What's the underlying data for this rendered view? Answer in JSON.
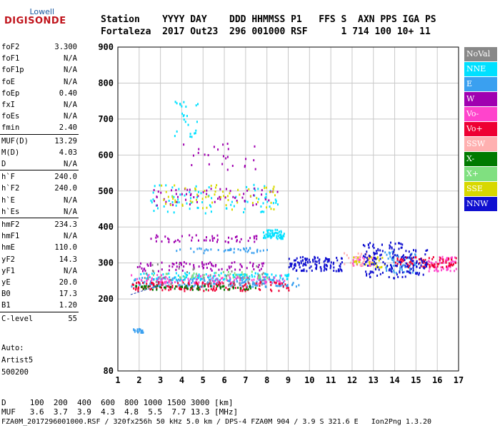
{
  "logo": {
    "top": "Lowell",
    "bottom": "DIGISONDE"
  },
  "header": {
    "line1": "Station    YYYY DAY    DDD HHMMSS P1   FFS S  AXN PPS IGA PS",
    "line2": "Fortaleza  2017 Out23  296 001000 RSF      1 714 100 10+ 11"
  },
  "params": [
    {
      "k": "foF2",
      "v": "3.300"
    },
    {
      "k": "foF1",
      "v": "N/A"
    },
    {
      "k": "foF1p",
      "v": "N/A"
    },
    {
      "k": "foE",
      "v": "N/A"
    },
    {
      "k": "foEp",
      "v": "0.40"
    },
    {
      "k": "fxI",
      "v": "N/A"
    },
    {
      "k": "foEs",
      "v": "N/A"
    },
    {
      "k": "fmin",
      "v": "2.40"
    },
    {
      "k": "MUF(D)",
      "v": "13.29"
    },
    {
      "k": "M(D)",
      "v": "4.03"
    },
    {
      "k": "D",
      "v": "N/A"
    },
    {
      "k": "h`F",
      "v": "240.0"
    },
    {
      "k": "h`F2",
      "v": "240.0"
    },
    {
      "k": "h`E",
      "v": "N/A"
    },
    {
      "k": "h`Es",
      "v": "N/A"
    },
    {
      "k": "hmF2",
      "v": "234.3"
    },
    {
      "k": "hmF1",
      "v": "N/A"
    },
    {
      "k": "hmE",
      "v": "110.0"
    },
    {
      "k": "yF2",
      "v": "14.3"
    },
    {
      "k": "yF1",
      "v": "N/A"
    },
    {
      "k": "yE",
      "v": "20.0"
    },
    {
      "k": "B0",
      "v": "17.3"
    },
    {
      "k": "B1",
      "v": "1.20"
    },
    {
      "k": "C-level",
      "v": "55"
    }
  ],
  "info": {
    "auto": "Auto:",
    "artist": "Artist5",
    "code": "500200"
  },
  "legend": [
    {
      "label": "NoVal",
      "bg": "#888888",
      "fg": "#ffffff"
    },
    {
      "label": "NNE",
      "bg": "#00e0ff",
      "fg": "#ffffff"
    },
    {
      "label": "E",
      "bg": "#3aa0f0",
      "fg": "#ffffff"
    },
    {
      "label": "W",
      "bg": "#a000b0",
      "fg": "#ffffff"
    },
    {
      "label": "Vo-",
      "bg": "#ff44cc",
      "fg": "#ffffff"
    },
    {
      "label": "Vo+",
      "bg": "#ee0033",
      "fg": "#ffffff"
    },
    {
      "label": "SSW",
      "bg": "#ffb0b0",
      "fg": "#ffffff"
    },
    {
      "label": "X-",
      "bg": "#007a00",
      "fg": "#ffffff"
    },
    {
      "label": "X+",
      "bg": "#80e080",
      "fg": "#ffffff"
    },
    {
      "label": "SSE",
      "bg": "#d8d800",
      "fg": "#ffffff"
    },
    {
      "label": "NNW",
      "bg": "#1010d0",
      "fg": "#ffffff"
    }
  ],
  "footer": {
    "row1": "D     100  200  400  600  800 1000 1500 3000 [km]",
    "row2": "MUF   3.6  3.7  3.9  4.3  4.8  5.5  7.7 13.3 [MHz]",
    "row3": "FZA0M_2017296001000.RSF / 320fx256h 50 kHz 5.0 km / DPS-4 FZA0M 904 / 3.9 S 321.6 E   Ion2Png 1.3.20"
  },
  "chart_data": {
    "type": "scatter",
    "xlabel": "",
    "ylabel": "",
    "xlim": [
      1,
      17
    ],
    "ylim": [
      80,
      900
    ],
    "x_ticks": [
      "1",
      "2",
      "3",
      "4",
      "5",
      "6",
      "7",
      "8",
      "9",
      "10",
      "11",
      "12",
      "13",
      "14",
      "15",
      "16",
      "17"
    ],
    "y_ticks": [
      "80",
      "200",
      "300",
      "400",
      "500",
      "600",
      "700",
      "800",
      "900"
    ],
    "grid": true,
    "legend_position": "right",
    "series": [
      {
        "name": "NNE",
        "color": "#00e0ff",
        "clusters": [
          {
            "x": [
              2.0,
              9.0
            ],
            "y": [
              255,
              275
            ],
            "n": 120
          },
          {
            "x": [
              7.8,
              8.8
            ],
            "y": [
              370,
              395
            ],
            "n": 60
          },
          {
            "x": [
              2.5,
              8.5
            ],
            "y": [
              440,
              520
            ],
            "n": 80
          },
          {
            "x": [
              3.5,
              4.8
            ],
            "y": [
              650,
              760
            ],
            "n": 25
          }
        ]
      },
      {
        "name": "E",
        "color": "#3aa0f0",
        "clusters": [
          {
            "x": [
              1.6,
              9.5
            ],
            "y": [
              235,
              262
            ],
            "n": 200
          },
          {
            "x": [
              1.7,
              2.2
            ],
            "y": [
              145,
              152
            ],
            "n": 20
          },
          {
            "x": [
              3.5,
              8.0
            ],
            "y": [
              330,
              345
            ],
            "n": 40
          },
          {
            "x": [
              13.5,
              15.0
            ],
            "y": [
              275,
              335
            ],
            "n": 60
          }
        ]
      },
      {
        "name": "W",
        "color": "#a000b0",
        "clusters": [
          {
            "x": [
              1.8,
              8.0
            ],
            "y": [
              280,
              305
            ],
            "n": 80
          },
          {
            "x": [
              2.5,
              7.5
            ],
            "y": [
              360,
              380
            ],
            "n": 50
          },
          {
            "x": [
              2.5,
              8.5
            ],
            "y": [
              460,
              510
            ],
            "n": 60
          },
          {
            "x": [
              3.5,
              7.5
            ],
            "y": [
              560,
              640
            ],
            "n": 25
          }
        ]
      },
      {
        "name": "Vo-",
        "color": "#ff44cc",
        "clusters": [
          {
            "x": [
              1.6,
              9.0
            ],
            "y": [
              245,
              270
            ],
            "n": 100
          },
          {
            "x": [
              12.0,
              13.0
            ],
            "y": [
              295,
              320
            ],
            "n": 30
          },
          {
            "x": [
              15.5,
              16.9
            ],
            "y": [
              280,
              320
            ],
            "n": 60
          }
        ]
      },
      {
        "name": "Vo+",
        "color": "#ee0033",
        "clusters": [
          {
            "x": [
              1.6,
              9.0
            ],
            "y": [
              225,
              250
            ],
            "n": 140
          },
          {
            "x": [
              14.0,
              16.9
            ],
            "y": [
              290,
              320
            ],
            "n": 80
          }
        ]
      },
      {
        "name": "SSW",
        "color": "#ffb0b0",
        "clusters": [
          {
            "x": [
              11.5,
              13.0
            ],
            "y": [
              295,
              330
            ],
            "n": 30
          }
        ]
      },
      {
        "name": "X-",
        "color": "#007a00",
        "clusters": [
          {
            "x": [
              1.8,
              7.5
            ],
            "y": [
              228,
              240
            ],
            "n": 60
          }
        ]
      },
      {
        "name": "X+",
        "color": "#80e080",
        "clusters": [
          {
            "x": [
              2.5,
              8.0
            ],
            "y": [
              260,
              280
            ],
            "n": 40
          }
        ]
      },
      {
        "name": "SSE",
        "color": "#d8d800",
        "clusters": [
          {
            "x": [
              3.0,
              8.5
            ],
            "y": [
              450,
              520
            ],
            "n": 60
          },
          {
            "x": [
              12.0,
              13.5
            ],
            "y": [
              290,
              320
            ],
            "n": 30
          }
        ]
      },
      {
        "name": "NNW",
        "color": "#1010d0",
        "clusters": [
          {
            "x": [
              9.0,
              11.5
            ],
            "y": [
              280,
              320
            ],
            "n": 120
          },
          {
            "x": [
              12.5,
              14.5
            ],
            "y": [
              260,
              360
            ],
            "n": 120
          },
          {
            "x": [
              14.5,
              15.5
            ],
            "y": [
              270,
              340
            ],
            "n": 50
          }
        ]
      },
      {
        "name": "NoVal",
        "color": "#888888",
        "clusters": [
          {
            "x": [
              2.0,
              8.0
            ],
            "y": [
              240,
              300
            ],
            "n": 40
          }
        ]
      }
    ]
  }
}
